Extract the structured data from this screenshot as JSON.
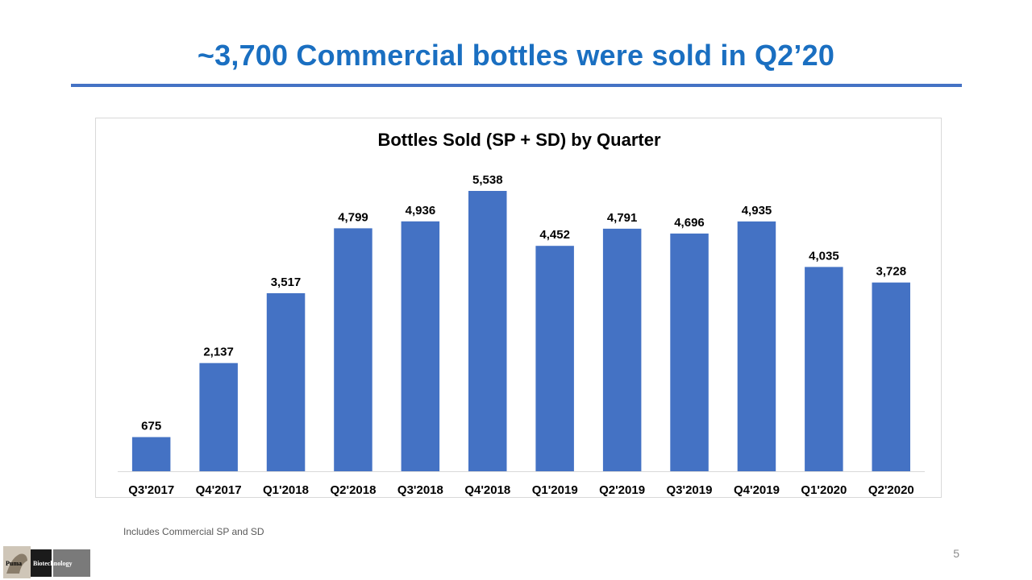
{
  "slide": {
    "title": "~3,700 Commercial bottles were sold in Q2’20",
    "footnote": "Includes Commercial SP and SD",
    "page_number": "5",
    "logo_text": [
      "Puma",
      "Biotechnology"
    ]
  },
  "colors": {
    "title": "#1a6fc1",
    "rule": "#4472c4",
    "bar": "#4472c4",
    "axis": "#d9d9d9"
  },
  "chart_data": {
    "type": "bar",
    "title": "Bottles Sold (SP + SD) by Quarter",
    "categories": [
      "Q3'2017",
      "Q4'2017",
      "Q1'2018",
      "Q2'2018",
      "Q3'2018",
      "Q4'2018",
      "Q1'2019",
      "Q2'2019",
      "Q3'2019",
      "Q4'2019",
      "Q1'2020",
      "Q2'2020"
    ],
    "values": [
      675,
      2137,
      3517,
      4799,
      4936,
      5538,
      4452,
      4791,
      4696,
      4935,
      4035,
      3728
    ],
    "value_labels": [
      "675",
      "2,137",
      "3,517",
      "4,799",
      "4,936",
      "5,538",
      "4,452",
      "4,791",
      "4,696",
      "4,935",
      "4,035",
      "3,728"
    ],
    "xlabel": "",
    "ylabel": "",
    "ylim": [
      0,
      5538
    ],
    "grid": false,
    "legend": "none"
  }
}
